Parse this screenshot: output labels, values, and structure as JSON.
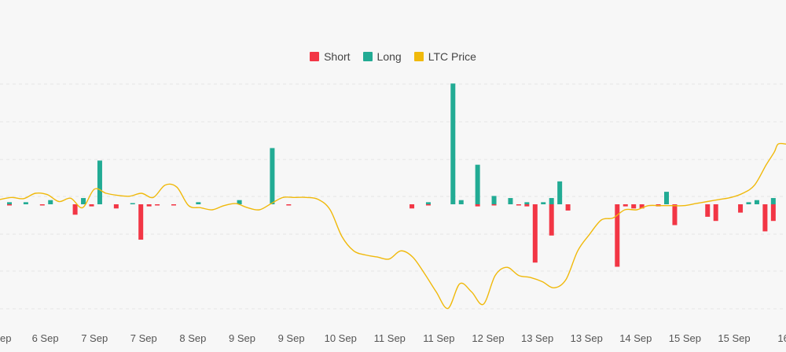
{
  "colors": {
    "short": "#f23645",
    "long": "#22ab94",
    "price": "#f0b90b",
    "grid": "#e6e6e6",
    "background": "#f7f7f7"
  },
  "legend": {
    "short_label": "Short",
    "long_label": "Long",
    "price_label": "LTC Price"
  },
  "chart_data": {
    "type": "bar",
    "x_tick_labels": [
      "ep",
      "6 Sep",
      "7 Sep",
      "7 Sep",
      "8 Sep",
      "9 Sep",
      "9 Sep",
      "10 Sep",
      "11 Sep",
      "11 Sep",
      "12 Sep",
      "13 Sep",
      "13 Sep",
      "14 Sep",
      "15 Sep",
      "15 Sep",
      "16"
    ],
    "grid": true,
    "legend_position": "top-center",
    "series": [
      {
        "name": "Short",
        "kind": "bar",
        "values": [
          0.5,
          0,
          0,
          0,
          0.5,
          0,
          0,
          0,
          5,
          0,
          1,
          0,
          0,
          2,
          0,
          0,
          17,
          1,
          0.5,
          0,
          0.5,
          0,
          0,
          0,
          0,
          0,
          0,
          0,
          0,
          0,
          0,
          0,
          0,
          0,
          0.5,
          0,
          0,
          0,
          0,
          0,
          0,
          0,
          0,
          0,
          0,
          0,
          0,
          0,
          0,
          2,
          0,
          0.5,
          0,
          0,
          0,
          0,
          0,
          1,
          0,
          0.5,
          0,
          0,
          0.5,
          1,
          28,
          0,
          15,
          0,
          3,
          0,
          0,
          0,
          0,
          0,
          30,
          1,
          2,
          2,
          0,
          1,
          0,
          10,
          0,
          0,
          0,
          6,
          8,
          0,
          0,
          4,
          0,
          0,
          13,
          8,
          0,
          24,
          12,
          0
        ]
      },
      {
        "name": "Long",
        "kind": "bar",
        "values": [
          1,
          0,
          1,
          0,
          0,
          2,
          0,
          0,
          0,
          3,
          0,
          21,
          0,
          0,
          0,
          0.5,
          0,
          0,
          0,
          0,
          0,
          0,
          0,
          1,
          0,
          0,
          0,
          0,
          2,
          0,
          0,
          0,
          27,
          0,
          0,
          0,
          0,
          0,
          0,
          0,
          0,
          0,
          0,
          0,
          0,
          0,
          0,
          0,
          0,
          0,
          0,
          1,
          0,
          0,
          58,
          2,
          0,
          19,
          0,
          4,
          0,
          3,
          0,
          1,
          0,
          1,
          3,
          11,
          0,
          0,
          0,
          0,
          0,
          0,
          0,
          0,
          0,
          0,
          0,
          0,
          6,
          0,
          0,
          0,
          0,
          0,
          0,
          0,
          0,
          0,
          1,
          2,
          0,
          3,
          0,
          0,
          0,
          2
        ]
      },
      {
        "name": "LTC Price",
        "kind": "line",
        "x": [
          0,
          15,
          30,
          45,
          60,
          75,
          90,
          105,
          120,
          135,
          150,
          165,
          180,
          195,
          210,
          225,
          240,
          255,
          270,
          285,
          300,
          315,
          330,
          345,
          360,
          375,
          390,
          405,
          420,
          435,
          450,
          465,
          480,
          495,
          510,
          525,
          540,
          555,
          570,
          585,
          600,
          615,
          630,
          645,
          660,
          675,
          690,
          705,
          720,
          735,
          750,
          765,
          780,
          795,
          810,
          825,
          840,
          855,
          870,
          885,
          900,
          915,
          930,
          945,
          960,
          975,
          985,
          990,
          1000
        ],
        "values": [
          61.7,
          61.75,
          61.72,
          61.85,
          61.82,
          61.65,
          61.73,
          61.5,
          61.95,
          61.85,
          61.8,
          61.78,
          61.85,
          61.75,
          62.05,
          62.0,
          61.55,
          61.5,
          61.45,
          61.55,
          61.6,
          61.5,
          61.45,
          61.6,
          61.75,
          61.75,
          61.75,
          61.7,
          61.45,
          60.8,
          60.45,
          60.35,
          60.3,
          60.25,
          60.45,
          60.3,
          59.9,
          59.45,
          59.05,
          59.65,
          59.45,
          59.15,
          59.85,
          60.05,
          59.85,
          59.8,
          59.7,
          59.55,
          59.75,
          60.45,
          60.85,
          61.2,
          61.25,
          61.45,
          61.45,
          61.55,
          61.55,
          61.55,
          61.55,
          61.6,
          61.65,
          61.7,
          61.75,
          61.85,
          62.05,
          62.55,
          62.85,
          63.05,
          63.05
        ]
      }
    ]
  }
}
